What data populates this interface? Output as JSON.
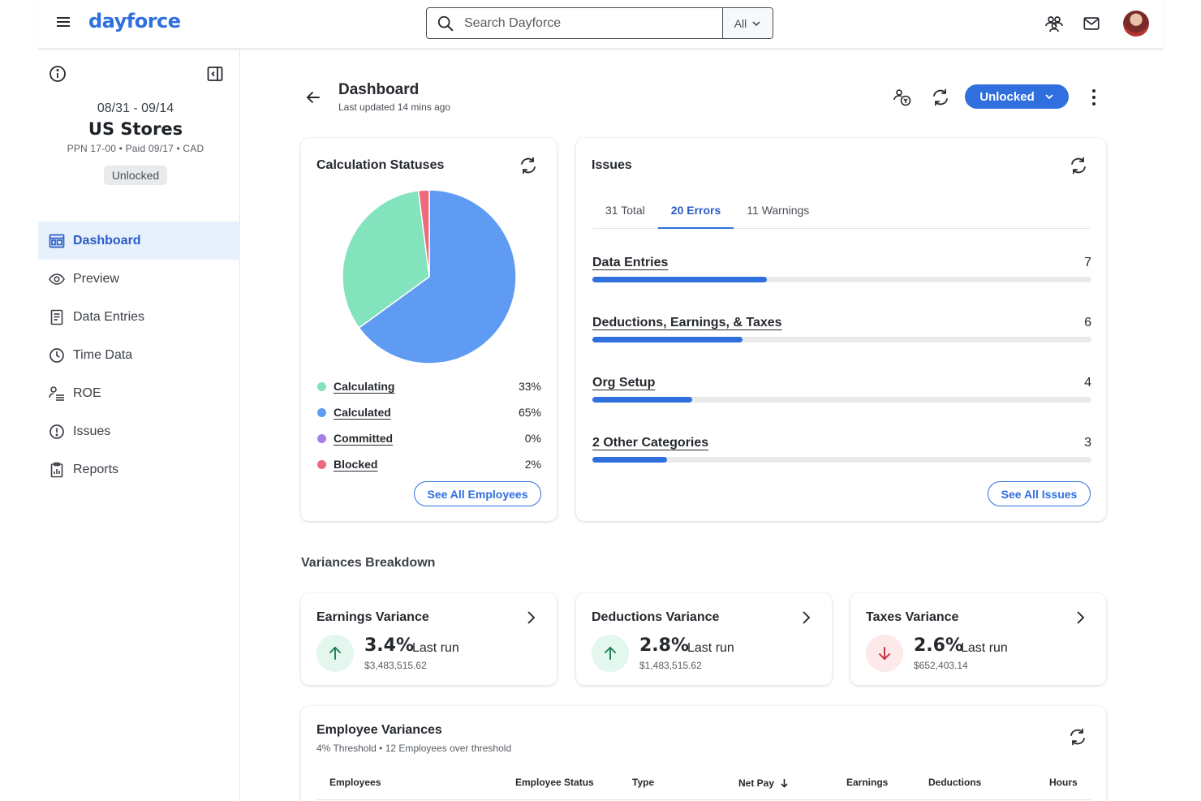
{
  "topbar": {
    "logo": "dayforce",
    "search_placeholder": "Search Dayforce",
    "search_scope": "All",
    "icons": [
      "menu-icon",
      "search-icon",
      "people-icon",
      "mail-icon",
      "avatar"
    ]
  },
  "sidebar": {
    "dates": "08/31 - 09/14",
    "name": "US Stores",
    "meta": "PPN 17-00 • Paid 09/17 • CAD",
    "status": "Unlocked",
    "items": [
      {
        "label": "Dashboard",
        "icon": "dashboard-icon",
        "active": true
      },
      {
        "label": "Preview",
        "icon": "eye-icon"
      },
      {
        "label": "Data Entries",
        "icon": "document-icon"
      },
      {
        "label": "Time Data",
        "icon": "clock-icon"
      },
      {
        "label": "ROE",
        "icon": "person-list-icon"
      },
      {
        "label": "Issues",
        "icon": "alert-icon"
      },
      {
        "label": "Reports",
        "icon": "clipboard-icon"
      }
    ]
  },
  "header": {
    "title": "Dashboard",
    "subtitle": "Last updated 14 mins ago",
    "unlock_label": "Unlocked"
  },
  "calc": {
    "title": "Calculation Statuses",
    "button": "See All Employees",
    "colors": {
      "Calculating": "#82e3bd",
      "Calculated": "#5f9bf3",
      "Committed": "#a680e8",
      "Blocked": "#ed6b7b"
    }
  },
  "chart_data": {
    "type": "pie",
    "categories": [
      "Calculating",
      "Calculated",
      "Committed",
      "Blocked"
    ],
    "values": [
      33,
      65,
      0,
      2
    ],
    "value_labels": [
      "33%",
      "65%",
      "0%",
      "2%"
    ],
    "title": "Calculation Statuses",
    "legend": "bottom"
  },
  "issues": {
    "title": "Issues",
    "tabs": [
      {
        "label": "31 Total",
        "active": false
      },
      {
        "label": "20 Errors",
        "active": true
      },
      {
        "label": "11 Warnings",
        "active": false
      }
    ],
    "rows": [
      {
        "label": "Data Entries",
        "count": 7,
        "fraction": 0.35
      },
      {
        "label": "Deductions, Earnings, & Taxes",
        "count": 6,
        "fraction": 0.3
      },
      {
        "label": "Org Setup",
        "count": 4,
        "fraction": 0.2
      },
      {
        "label": "2 Other Categories",
        "count": 3,
        "fraction": 0.15
      }
    ],
    "button": "See All Issues"
  },
  "variances": {
    "section_title": "Variances Breakdown",
    "cards": [
      {
        "title": "Earnings Variance",
        "pct": "3.4%",
        "run": "Last run",
        "amount": "$3,483,515.62",
        "direction": "up"
      },
      {
        "title": "Deductions Variance",
        "pct": "2.8%",
        "run": "Last run",
        "amount": "$1,483,515.62",
        "direction": "up"
      },
      {
        "title": "Taxes Variance",
        "pct": "2.6%",
        "run": "Last run",
        "amount": "$652,403.14",
        "direction": "down"
      }
    ]
  },
  "employee_variances": {
    "title": "Employee Variances",
    "subtitle": "4% Threshold • 12 Employees over threshold",
    "columns": [
      "Employees",
      "Employee Status",
      "Type",
      "Net Pay",
      "Earnings",
      "Deductions",
      "Hours"
    ],
    "sort_column": "Net Pay"
  }
}
